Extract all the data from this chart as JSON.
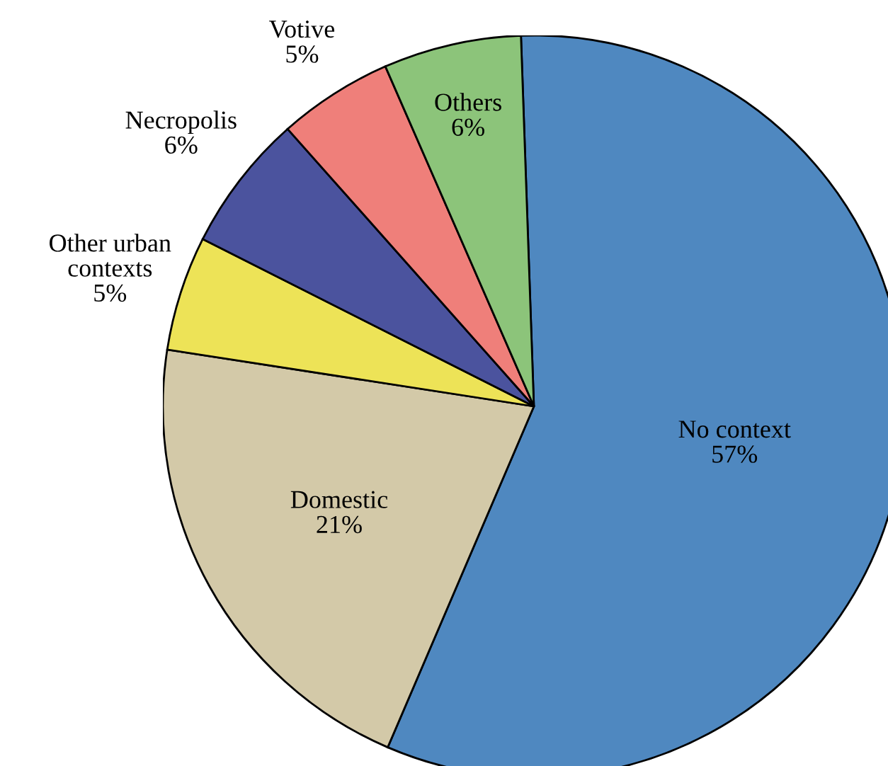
{
  "chart_data": {
    "type": "pie",
    "categories": [
      "No context",
      "Domestic",
      "Other urban\ncontexts",
      "Necropolis",
      "Votive",
      "Others"
    ],
    "values": [
      57,
      21,
      5,
      6,
      5,
      6
    ],
    "colors": [
      "#4f88c0",
      "#d3c9a8",
      "#ede357",
      "#4b539e",
      "#ef7f7a",
      "#8cc47a"
    ],
    "value_labels": [
      "57%",
      "21%",
      "5%",
      "6%",
      "5%",
      "6%"
    ]
  }
}
